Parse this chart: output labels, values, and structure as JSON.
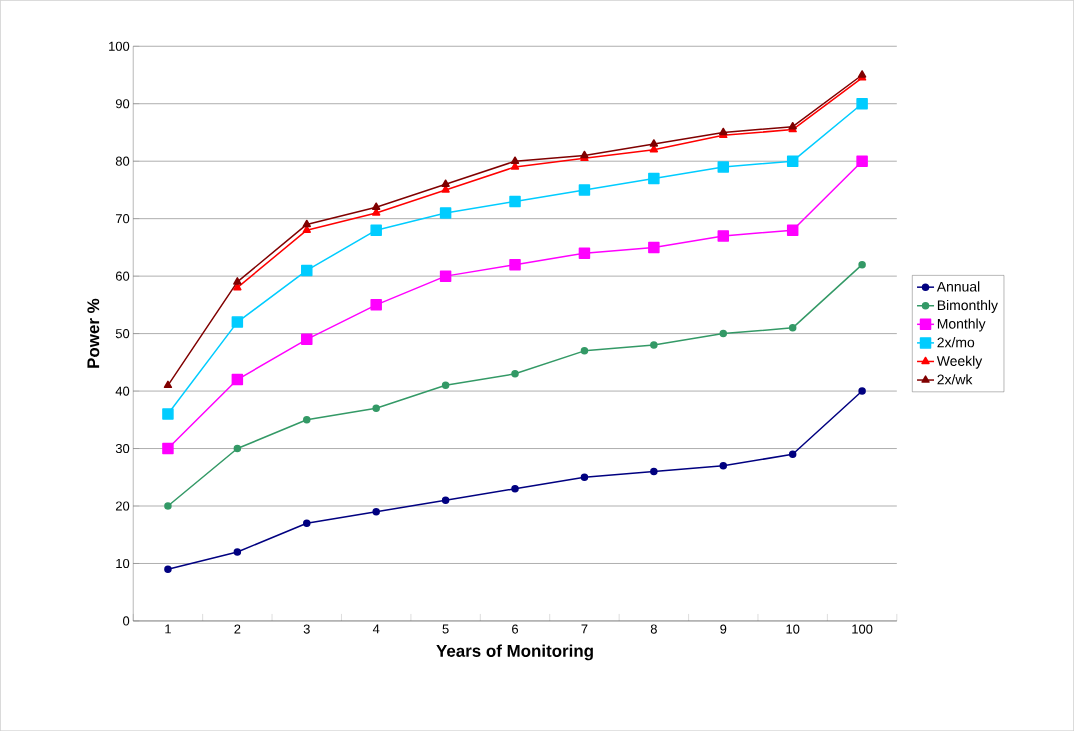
{
  "chart_data": {
    "type": "line",
    "xlabel": "Years of Monitoring",
    "ylabel": "Power %",
    "categories": [
      "1",
      "2",
      "3",
      "4",
      "5",
      "6",
      "7",
      "8",
      "9",
      "10",
      "100"
    ],
    "series": [
      {
        "name": "Annual",
        "color": "#000080",
        "marker": "circle",
        "values": [
          9,
          12,
          17,
          19,
          21,
          23,
          25,
          26,
          27,
          29,
          40
        ]
      },
      {
        "name": "Bimonthly",
        "color": "#339966",
        "marker": "circle",
        "values": [
          20,
          30,
          35,
          37,
          41,
          43,
          47,
          48,
          50,
          51,
          62
        ]
      },
      {
        "name": "Monthly",
        "color": "#ff00ff",
        "marker": "square",
        "values": [
          30,
          42,
          49,
          55,
          60,
          62,
          64,
          65,
          67,
          68,
          80
        ]
      },
      {
        "name": "2x/mo",
        "color": "#00ccff",
        "marker": "square",
        "values": [
          36,
          52,
          61,
          68,
          71,
          73,
          75,
          77,
          79,
          80,
          90
        ]
      },
      {
        "name": "Weekly",
        "color": "#ff0000",
        "marker": "triangle",
        "values": [
          null,
          58,
          68,
          71,
          75,
          79,
          80.5,
          82,
          84.5,
          85.5,
          94.5
        ]
      },
      {
        "name": "2x/wk",
        "color": "#800000",
        "marker": "triangle",
        "values": [
          41,
          59,
          69,
          72,
          76,
          80,
          81,
          83,
          85,
          86,
          95
        ]
      }
    ],
    "ylim": [
      0,
      100
    ],
    "yticks": [
      0,
      10,
      20,
      30,
      40,
      50,
      60,
      70,
      80,
      90,
      100
    ],
    "grid": "y",
    "legend": "right",
    "line_style": "solid"
  }
}
